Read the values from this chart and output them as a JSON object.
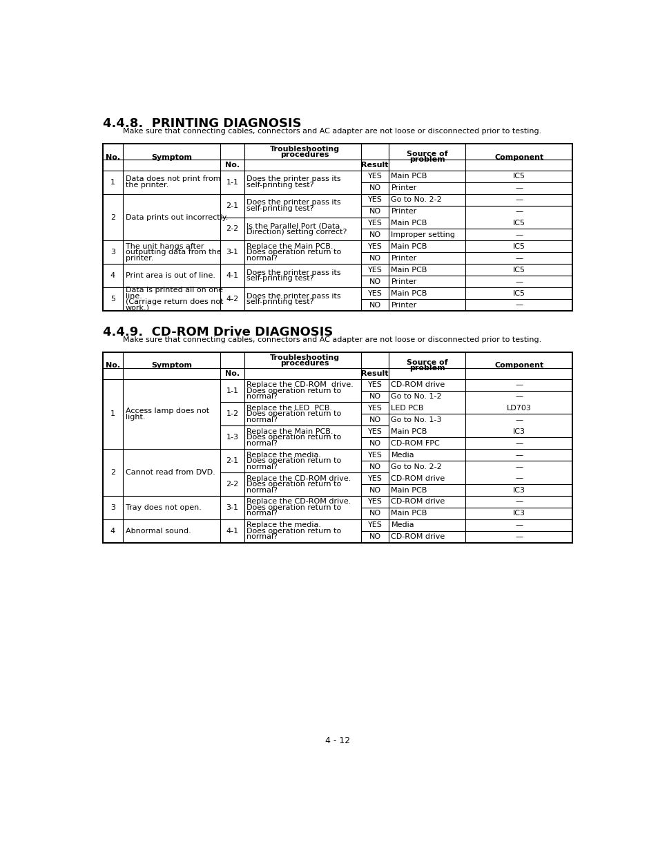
{
  "title1_num": "4.4.8.",
  "title1_text": "  PRINTING DIAGNOSIS",
  "subtitle1": "Make sure that connecting cables, connectors and AC adapter are not loose or disconnected prior to testing.",
  "title2_num": "4.4.9.",
  "title2_text": "  CD-ROM Drive DIAGNOSIS",
  "subtitle2": "Make sure that connecting cables, connectors and AC adapter are not loose or disconnected prior to testing.",
  "footer": "4 - 12",
  "bg_color": "#ffffff",
  "printing_groups": [
    {
      "no": "1",
      "symptom": "Data does not print from\nthe printer.",
      "sub_rows": [
        {
          "sub_no": "1-1",
          "procedure": "Does the printer pass its\nself-printing test?",
          "entries": [
            {
              "result": "YES",
              "source": "Main PCB",
              "component": "IC5"
            },
            {
              "result": "NO",
              "source": "Printer",
              "component": "—"
            }
          ]
        }
      ]
    },
    {
      "no": "2",
      "symptom": "Data prints out incorrectly.",
      "sub_rows": [
        {
          "sub_no": "2-1",
          "procedure": "Does the printer pass its\nself-printing test?",
          "entries": [
            {
              "result": "YES",
              "source": "Go to No. 2-2",
              "component": "—"
            },
            {
              "result": "NO",
              "source": "Printer",
              "component": "—"
            }
          ]
        },
        {
          "sub_no": "2-2",
          "procedure": "Is the Parallel Port (Data\nDirection) setting correct?",
          "entries": [
            {
              "result": "YES",
              "source": "Main PCB",
              "component": "IC5"
            },
            {
              "result": "NO",
              "source": "Improper setting",
              "component": "—"
            }
          ]
        }
      ]
    },
    {
      "no": "3",
      "symptom": "The unit hangs after\noutputting data from the\nprinter.",
      "sub_rows": [
        {
          "sub_no": "3-1",
          "procedure": "Replace the Main PCB.\nDoes operation return to\nnormal?",
          "entries": [
            {
              "result": "YES",
              "source": "Main PCB",
              "component": "IC5"
            },
            {
              "result": "NO",
              "source": "Printer",
              "component": "—"
            }
          ]
        }
      ]
    },
    {
      "no": "4",
      "symptom": "Print area is out of line.",
      "sub_rows": [
        {
          "sub_no": "4-1",
          "procedure": "Does the printer pass its\nself-printing test?",
          "entries": [
            {
              "result": "YES",
              "source": "Main PCB",
              "component": "IC5"
            },
            {
              "result": "NO",
              "source": "Printer",
              "component": "—"
            }
          ]
        }
      ]
    },
    {
      "no": "5",
      "symptom": "Data is printed all on one\nline.\n(Carriage return does not\nwork.)",
      "sub_rows": [
        {
          "sub_no": "4-2",
          "procedure": "Does the printer pass its\nself-printing test?",
          "entries": [
            {
              "result": "YES",
              "source": "Main PCB",
              "component": "IC5"
            },
            {
              "result": "NO",
              "source": "Printer",
              "component": "—"
            }
          ]
        }
      ]
    }
  ],
  "cdrom_groups": [
    {
      "no": "1",
      "symptom": "Access lamp does not\nlight.",
      "sub_rows": [
        {
          "sub_no": "1-1",
          "procedure": "Replace the CD-ROM  drive.\nDoes operation return to\nnormal?",
          "entries": [
            {
              "result": "YES",
              "source": "CD-ROM drive",
              "component": "—"
            },
            {
              "result": "NO",
              "source": "Go to No. 1-2",
              "component": "—"
            }
          ]
        },
        {
          "sub_no": "1-2",
          "procedure": "Replace the LED  PCB.\nDoes operation return to\nnormal?",
          "entries": [
            {
              "result": "YES",
              "source": "LED PCB",
              "component": "LD703"
            },
            {
              "result": "NO",
              "source": "Go to No. 1-3",
              "component": "—"
            }
          ]
        },
        {
          "sub_no": "1-3",
          "procedure": "Replace the Main PCB.\nDoes operation return to\nnormal?",
          "entries": [
            {
              "result": "YES",
              "source": "Main PCB",
              "component": "IC3"
            },
            {
              "result": "NO",
              "source": "CD-ROM FPC",
              "component": "—"
            }
          ]
        }
      ]
    },
    {
      "no": "2",
      "symptom": "Cannot read from DVD.",
      "sub_rows": [
        {
          "sub_no": "2-1",
          "procedure": "Replace the media.\nDoes operation return to\nnormal?",
          "entries": [
            {
              "result": "YES",
              "source": "Media",
              "component": "—"
            },
            {
              "result": "NO",
              "source": "Go to No. 2-2",
              "component": "—"
            }
          ]
        },
        {
          "sub_no": "2-2",
          "procedure": "Replace the CD-ROM drive.\nDoes operation return to\nnormal?",
          "entries": [
            {
              "result": "YES",
              "source": "CD-ROM drive",
              "component": "—"
            },
            {
              "result": "NO",
              "source": "Main PCB",
              "component": "IC3"
            }
          ]
        }
      ]
    },
    {
      "no": "3",
      "symptom": "Tray does not open.",
      "sub_rows": [
        {
          "sub_no": "3-1",
          "procedure": "Replace the CD-ROM drive.\nDoes operation return to\nnormal?",
          "entries": [
            {
              "result": "YES",
              "source": "CD-ROM drive",
              "component": "—"
            },
            {
              "result": "NO",
              "source": "Main PCB",
              "component": "IC3"
            }
          ]
        }
      ]
    },
    {
      "no": "4",
      "symptom": "Abnormal sound.",
      "sub_rows": [
        {
          "sub_no": "4-1",
          "procedure": "Replace the media.\nDoes operation return to\nnormal?",
          "entries": [
            {
              "result": "YES",
              "source": "Media",
              "component": "—"
            },
            {
              "result": "NO",
              "source": "CD-ROM drive",
              "component": "—"
            }
          ]
        }
      ]
    }
  ]
}
